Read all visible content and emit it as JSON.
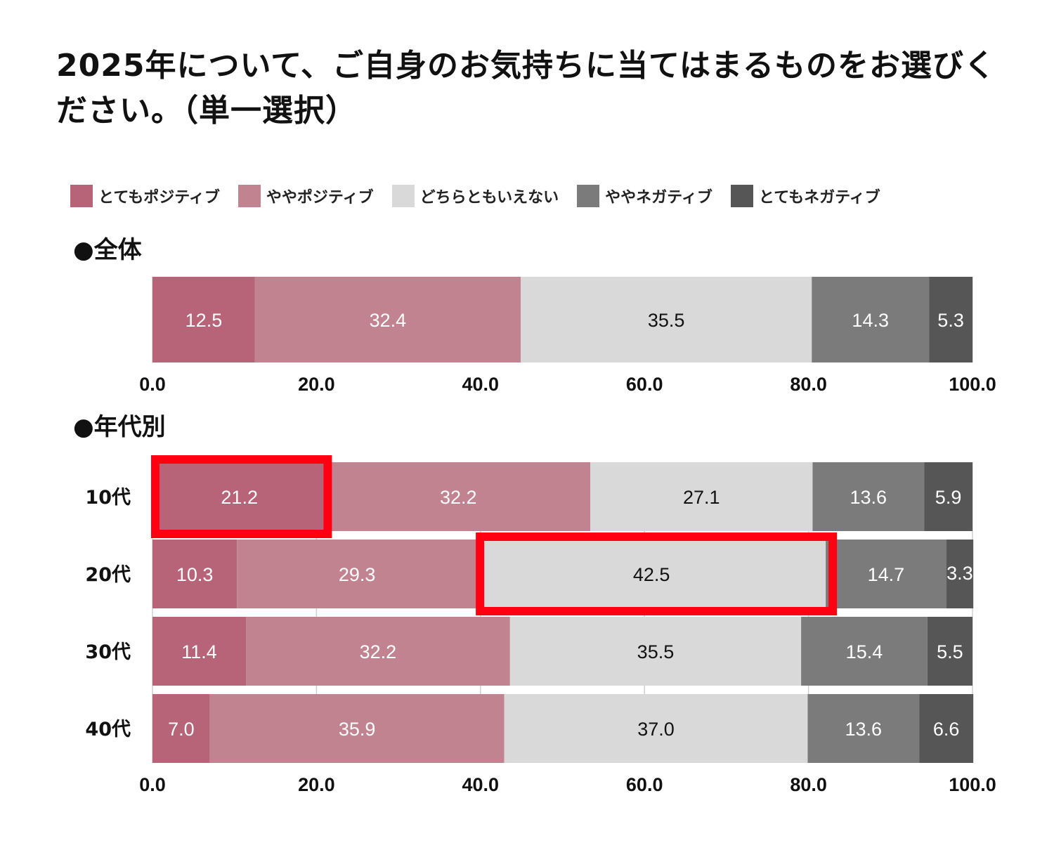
{
  "title": "2025年について、ご自身のお気持ちに当てはまるものをお選びください。（単一選択）",
  "sections": {
    "overall": "●全体",
    "by_age": "●年代別"
  },
  "colors": {
    "very_positive": "#b76478",
    "somewhat_positive": "#c18390",
    "neutral": "#d9d9d9",
    "somewhat_negative": "#7b7b7b",
    "very_negative": "#565656",
    "highlight": "#ff0013",
    "grid": "#d0d0d0"
  },
  "chart_data": [
    {
      "type": "bar",
      "orientation": "horizontal-stacked-100",
      "title": "●全体",
      "categories": [
        ""
      ],
      "series": [
        {
          "name": "とてもポジティブ",
          "values": [
            12.5
          ]
        },
        {
          "name": "ややポジティブ",
          "values": [
            32.4
          ]
        },
        {
          "name": "どちらともいえない",
          "values": [
            35.5
          ]
        },
        {
          "name": "ややネガティブ",
          "values": [
            14.3
          ]
        },
        {
          "name": "とてもネガティブ",
          "values": [
            5.3
          ]
        }
      ],
      "xlim": [
        0,
        100
      ],
      "xticks": [
        "0.0",
        "20.0",
        "40.0",
        "60.0",
        "80.0",
        "100.0"
      ],
      "legend": "top",
      "grid": true
    },
    {
      "type": "bar",
      "orientation": "horizontal-stacked-100",
      "title": "●年代別",
      "categories": [
        "10代",
        "20代",
        "30代",
        "40代"
      ],
      "series": [
        {
          "name": "とてもポジティブ",
          "values": [
            21.2,
            10.3,
            11.4,
            7.0
          ]
        },
        {
          "name": "ややポジティブ",
          "values": [
            32.2,
            29.3,
            32.2,
            35.9
          ]
        },
        {
          "name": "どちらともいえない",
          "values": [
            27.1,
            42.5,
            35.5,
            37.0
          ]
        },
        {
          "name": "ややネガティブ",
          "values": [
            13.6,
            14.7,
            15.4,
            13.6
          ]
        },
        {
          "name": "とてもネガティブ",
          "values": [
            5.9,
            3.3,
            5.5,
            6.6
          ]
        }
      ],
      "xlim": [
        0,
        100
      ],
      "xticks": [
        "0.0",
        "20.0",
        "40.0",
        "60.0",
        "80.0",
        "100.0"
      ],
      "highlights": [
        {
          "category": "10代",
          "series": "とてもポジティブ"
        },
        {
          "category": "20代",
          "series": "どちらともいえない"
        }
      ],
      "grid": true
    }
  ]
}
